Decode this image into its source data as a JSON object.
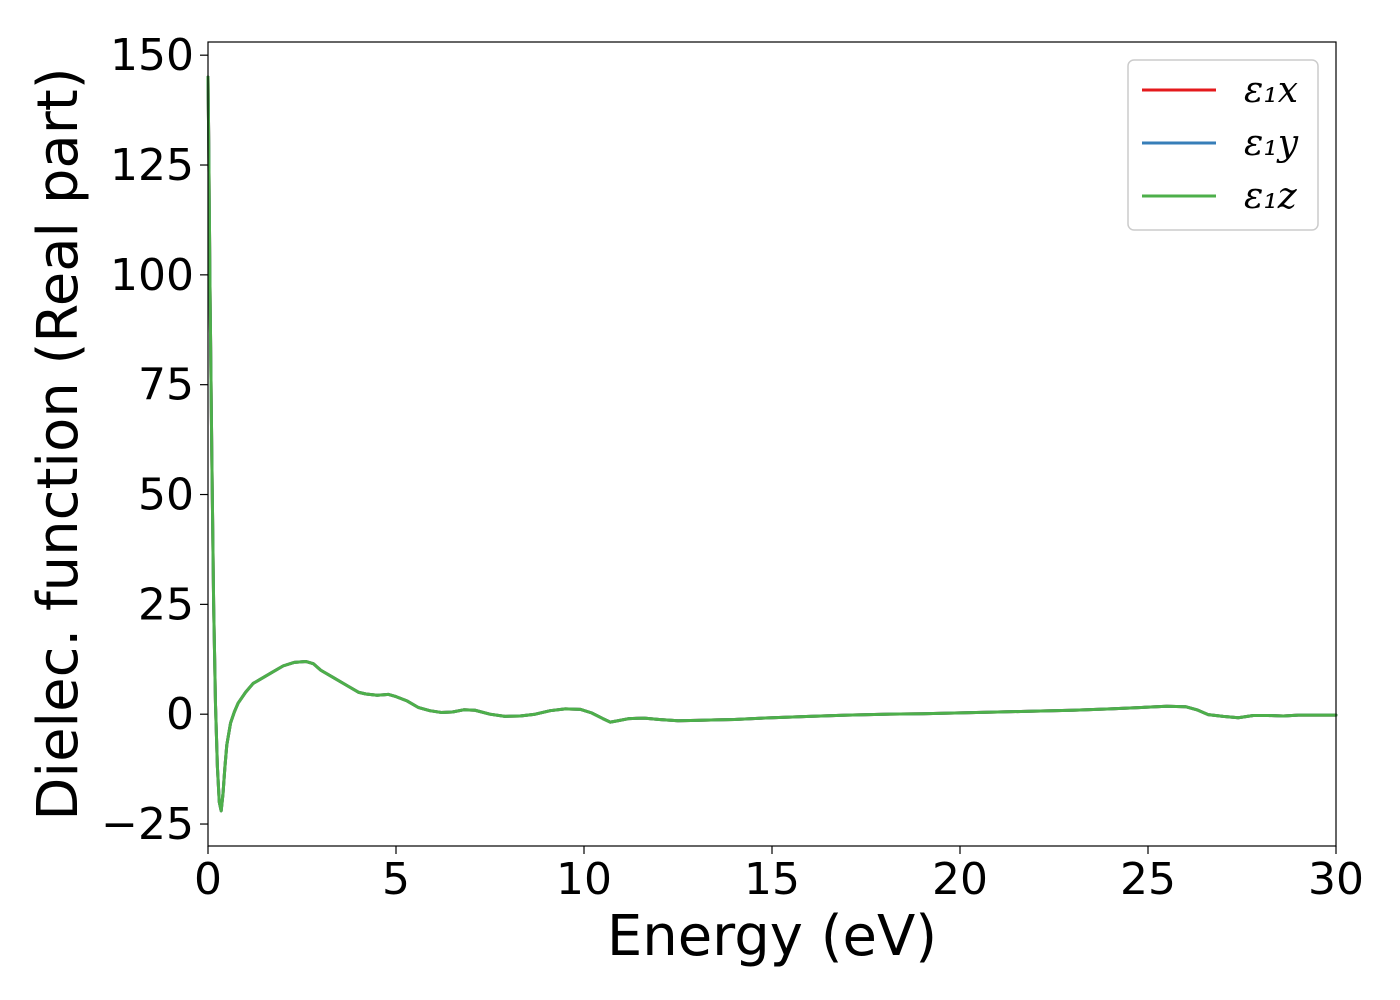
{
  "chart_data": {
    "type": "line",
    "title": "",
    "xlabel": "Energy (eV)",
    "ylabel": "Dielec. function (Real part)",
    "xlim": [
      0,
      30
    ],
    "ylim": [
      -30,
      153
    ],
    "xticks": [
      0,
      5,
      10,
      15,
      20,
      25,
      30
    ],
    "xtick_labels": [
      "0",
      "5",
      "10",
      "15",
      "20",
      "25",
      "30"
    ],
    "yticks": [
      -25,
      0,
      25,
      50,
      75,
      100,
      125,
      150
    ],
    "ytick_labels": [
      "−25",
      "0",
      "25",
      "50",
      "75",
      "100",
      "125",
      "150"
    ],
    "grid": false,
    "legend_position": "top-right",
    "x": [
      0.0,
      0.02,
      0.05,
      0.1,
      0.15,
      0.2,
      0.25,
      0.3,
      0.35,
      0.4,
      0.45,
      0.5,
      0.6,
      0.7,
      0.8,
      1.0,
      1.2,
      1.4,
      1.7,
      2.0,
      2.3,
      2.6,
      2.8,
      3.0,
      3.3,
      3.7,
      4.0,
      4.2,
      4.5,
      4.8,
      5.0,
      5.3,
      5.6,
      5.9,
      6.2,
      6.5,
      6.8,
      7.1,
      7.5,
      7.9,
      8.3,
      8.7,
      9.1,
      9.5,
      9.9,
      10.2,
      10.5,
      10.7,
      10.9,
      11.2,
      11.6,
      12.0,
      12.5,
      13.0,
      13.5,
      14.0,
      15.0,
      16.0,
      17.0,
      18.0,
      19.0,
      20.0,
      21.0,
      22.0,
      23.0,
      24.0,
      25.0,
      25.5,
      26.0,
      26.3,
      26.6,
      27.0,
      27.4,
      27.8,
      28.2,
      28.6,
      29.0,
      29.5,
      30.0
    ],
    "series": [
      {
        "name": "ε₁x",
        "color": "#e41a1c",
        "values": [
          145.0,
          130.0,
          100.0,
          60.0,
          25.0,
          2.0,
          -12.0,
          -20.0,
          -22.0,
          -18.0,
          -12.0,
          -7.0,
          -2.0,
          0.5,
          2.5,
          5.0,
          7.0,
          8.0,
          9.5,
          11.0,
          11.8,
          12.0,
          11.5,
          10.0,
          8.5,
          6.5,
          5.0,
          4.6,
          4.3,
          4.5,
          4.0,
          3.0,
          1.5,
          0.8,
          0.4,
          0.5,
          1.0,
          0.9,
          0.0,
          -0.5,
          -0.4,
          0.0,
          0.8,
          1.2,
          1.1,
          0.3,
          -1.0,
          -1.8,
          -1.5,
          -1.0,
          -0.9,
          -1.2,
          -1.5,
          -1.4,
          -1.3,
          -1.2,
          -0.8,
          -0.5,
          -0.2,
          0.0,
          0.1,
          0.3,
          0.5,
          0.7,
          0.9,
          1.2,
          1.6,
          1.8,
          1.7,
          1.0,
          -0.1,
          -0.5,
          -0.8,
          -0.3,
          -0.3,
          -0.4,
          -0.2,
          -0.2,
          -0.2
        ]
      },
      {
        "name": "ε₁y",
        "color": "#377eb8",
        "values": [
          145.0,
          130.0,
          100.0,
          60.0,
          25.0,
          2.0,
          -12.0,
          -20.0,
          -22.0,
          -18.0,
          -12.0,
          -7.0,
          -2.0,
          0.5,
          2.5,
          5.0,
          7.0,
          8.0,
          9.5,
          11.0,
          11.8,
          12.0,
          11.5,
          10.0,
          8.5,
          6.5,
          5.0,
          4.6,
          4.3,
          4.5,
          4.0,
          3.0,
          1.5,
          0.8,
          0.4,
          0.5,
          1.0,
          0.9,
          0.0,
          -0.5,
          -0.4,
          0.0,
          0.8,
          1.2,
          1.1,
          0.3,
          -1.0,
          -1.8,
          -1.5,
          -1.0,
          -0.9,
          -1.2,
          -1.5,
          -1.4,
          -1.3,
          -1.2,
          -0.8,
          -0.5,
          -0.2,
          0.0,
          0.1,
          0.3,
          0.5,
          0.7,
          0.9,
          1.2,
          1.6,
          1.8,
          1.7,
          1.0,
          -0.1,
          -0.5,
          -0.8,
          -0.3,
          -0.3,
          -0.4,
          -0.2,
          -0.2,
          -0.2
        ]
      },
      {
        "name": "ε₁z",
        "color": "#4daf4a",
        "values": [
          145.0,
          130.0,
          100.0,
          60.0,
          25.0,
          2.0,
          -12.0,
          -20.0,
          -22.0,
          -18.0,
          -12.0,
          -7.0,
          -2.0,
          0.5,
          2.5,
          5.0,
          7.0,
          8.0,
          9.5,
          11.0,
          11.8,
          12.0,
          11.5,
          10.0,
          8.5,
          6.5,
          5.0,
          4.6,
          4.3,
          4.5,
          4.0,
          3.0,
          1.5,
          0.8,
          0.4,
          0.5,
          1.0,
          0.9,
          0.0,
          -0.5,
          -0.4,
          0.0,
          0.8,
          1.2,
          1.1,
          0.3,
          -1.0,
          -1.8,
          -1.5,
          -1.0,
          -0.9,
          -1.2,
          -1.5,
          -1.4,
          -1.3,
          -1.2,
          -0.8,
          -0.5,
          -0.2,
          0.0,
          0.1,
          0.3,
          0.5,
          0.7,
          0.9,
          1.2,
          1.6,
          1.8,
          1.7,
          1.0,
          -0.1,
          -0.5,
          -0.8,
          -0.3,
          -0.3,
          -0.4,
          -0.2,
          -0.2,
          -0.2
        ]
      }
    ]
  }
}
